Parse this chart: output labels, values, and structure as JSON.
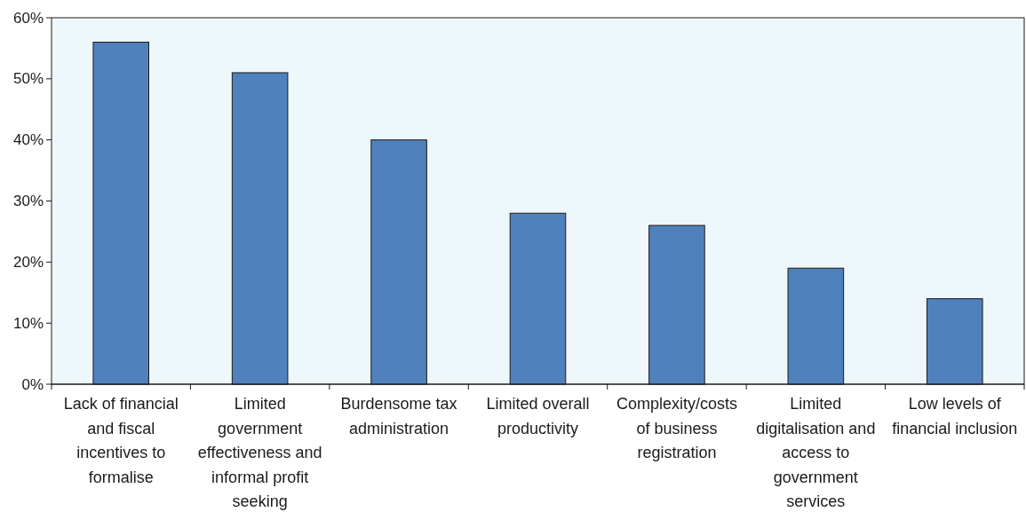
{
  "chart_data": {
    "type": "bar",
    "categories": [
      "Lack of financial and fiscal incentives to formalise",
      "Limited government effectiveness and informal profit seeking",
      "Burdensome tax administration",
      "Limited overall productivity",
      "Complexity/costs of business registration",
      "Limited digitalisation and access to government services",
      "Low levels of financial inclusion"
    ],
    "values": [
      56,
      51,
      40,
      28,
      26,
      19,
      14
    ],
    "color": "#4f81bd",
    "ylim": [
      0,
      60
    ],
    "yticks": [
      {
        "value": 0,
        "label": "0%"
      },
      {
        "value": 10,
        "label": "10%"
      },
      {
        "value": 20,
        "label": "20%"
      },
      {
        "value": 30,
        "label": "30%"
      },
      {
        "value": 40,
        "label": "40%"
      },
      {
        "value": 50,
        "label": "50%"
      },
      {
        "value": 60,
        "label": "60%"
      }
    ],
    "grid": false
  }
}
